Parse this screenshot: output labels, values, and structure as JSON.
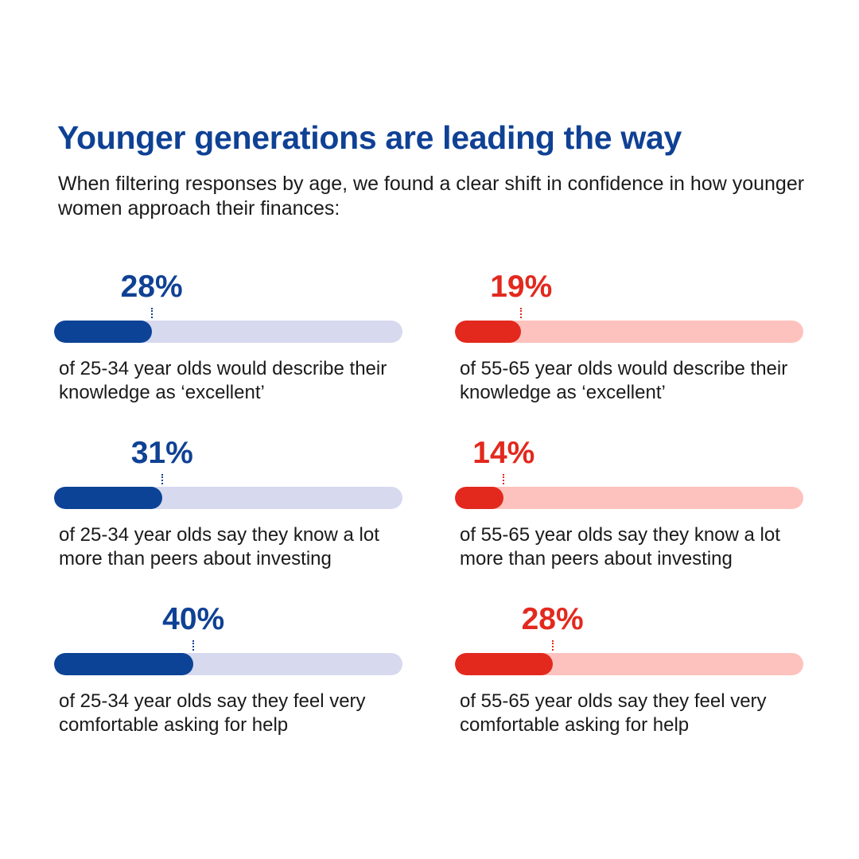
{
  "header": {
    "title": "Younger generations are leading the way",
    "subtitle": "When filtering responses by age, we found a clear shift in confidence in how younger women approach their finances:"
  },
  "colors": {
    "younger_fill": "#0c4396",
    "younger_track": "#d7d9ef",
    "younger_text": "#0f4194",
    "older_fill": "#e3291e",
    "older_track": "#fec2be",
    "older_text": "#e3291e"
  },
  "chart_data": {
    "type": "bar",
    "orientation": "horizontal",
    "xlim": [
      0,
      100
    ],
    "series": [
      {
        "name": "25-34 year olds",
        "color": "#0c4396",
        "values": [
          28,
          31,
          40
        ],
        "labels": [
          "28%",
          "31%",
          "40%"
        ],
        "descriptions": [
          "of 25-34 year olds would describe their knowledge as ‘excellent’",
          "of 25-34 year olds say they know a lot more than peers about investing",
          "of 25-34 year olds say they feel very comfortable asking for help"
        ]
      },
      {
        "name": "55-65 year olds",
        "color": "#e3291e",
        "values": [
          19,
          14,
          28
        ],
        "labels": [
          "19%",
          "14%",
          "28%"
        ],
        "descriptions": [
          "of 55-65 year olds would describe their knowledge as ‘excellent’",
          "of 55-65 year olds say they know a lot more than peers about investing",
          "of 55-65 year olds say they feel very comfortable asking for help"
        ]
      }
    ]
  }
}
